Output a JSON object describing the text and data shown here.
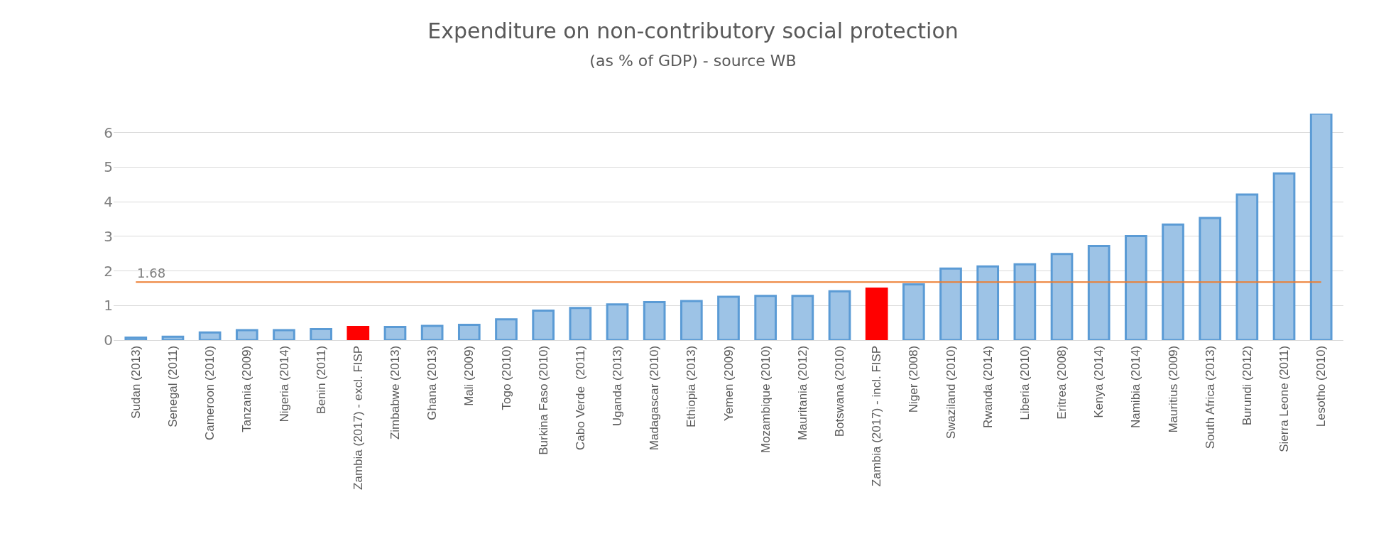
{
  "chart_data": {
    "type": "bar",
    "title": "Expenditure on non-contributory social protection",
    "subtitle": "(as % of GDP) - source WB",
    "categories": [
      "Sudan (2013)",
      "Senegal (2011)",
      "Cameroon (2010)",
      "Tanzania (2009)",
      "Nigeria (2014)",
      "Benin (2011)",
      "Zambia (2017) - excl. FISP",
      "Zimbabwe (2013)",
      "Ghana (2013)",
      "Mali (2009)",
      "Togo (2010)",
      "Burkina Faso (2010)",
      "Cabo Verde  (2011)",
      "Uganda (2013)",
      "Madagascar (2010)",
      "Ethiopia (2013)",
      "Yemen (2009)",
      "Mozambique (2010)",
      "Mauritania (2012)",
      "Botswana (2010)",
      "Zambia (2017) - incl. FISP",
      "Niger (2008)",
      "Swaziland (2010)",
      "Rwanda (2014)",
      "Liberia (2010)",
      "Eritrea (2008)",
      "Kenya (2014)",
      "Namibia (2014)",
      "Mauritius (2009)",
      "South Africa (2013)",
      "Burundi (2012)",
      "Sierra Leone (2011)",
      "Lesotho (2010)"
    ],
    "values": [
      0.07,
      0.1,
      0.22,
      0.29,
      0.29,
      0.32,
      0.38,
      0.38,
      0.41,
      0.44,
      0.6,
      0.85,
      0.93,
      1.03,
      1.1,
      1.13,
      1.25,
      1.28,
      1.28,
      1.41,
      1.49,
      1.61,
      2.07,
      2.13,
      2.19,
      2.49,
      2.72,
      3.01,
      3.34,
      3.53,
      4.21,
      4.82,
      6.55
    ],
    "colors": [
      "#9dc3e6",
      "#9dc3e6",
      "#9dc3e6",
      "#9dc3e6",
      "#9dc3e6",
      "#9dc3e6",
      "#ff0000",
      "#9dc3e6",
      "#9dc3e6",
      "#9dc3e6",
      "#9dc3e6",
      "#9dc3e6",
      "#9dc3e6",
      "#9dc3e6",
      "#9dc3e6",
      "#9dc3e6",
      "#9dc3e6",
      "#9dc3e6",
      "#9dc3e6",
      "#9dc3e6",
      "#ff0000",
      "#9dc3e6",
      "#9dc3e6",
      "#9dc3e6",
      "#9dc3e6",
      "#9dc3e6",
      "#9dc3e6",
      "#9dc3e6",
      "#9dc3e6",
      "#9dc3e6",
      "#9dc3e6",
      "#9dc3e6",
      "#9dc3e6"
    ],
    "ylim": [
      0,
      6.55
    ],
    "yticks": [
      0,
      1,
      2,
      3,
      4,
      5,
      6
    ],
    "grid": "y",
    "ref_lines": [
      {
        "axis": "y",
        "value": 1.68,
        "label": "1.68",
        "color": "#ed7d31"
      }
    ]
  }
}
